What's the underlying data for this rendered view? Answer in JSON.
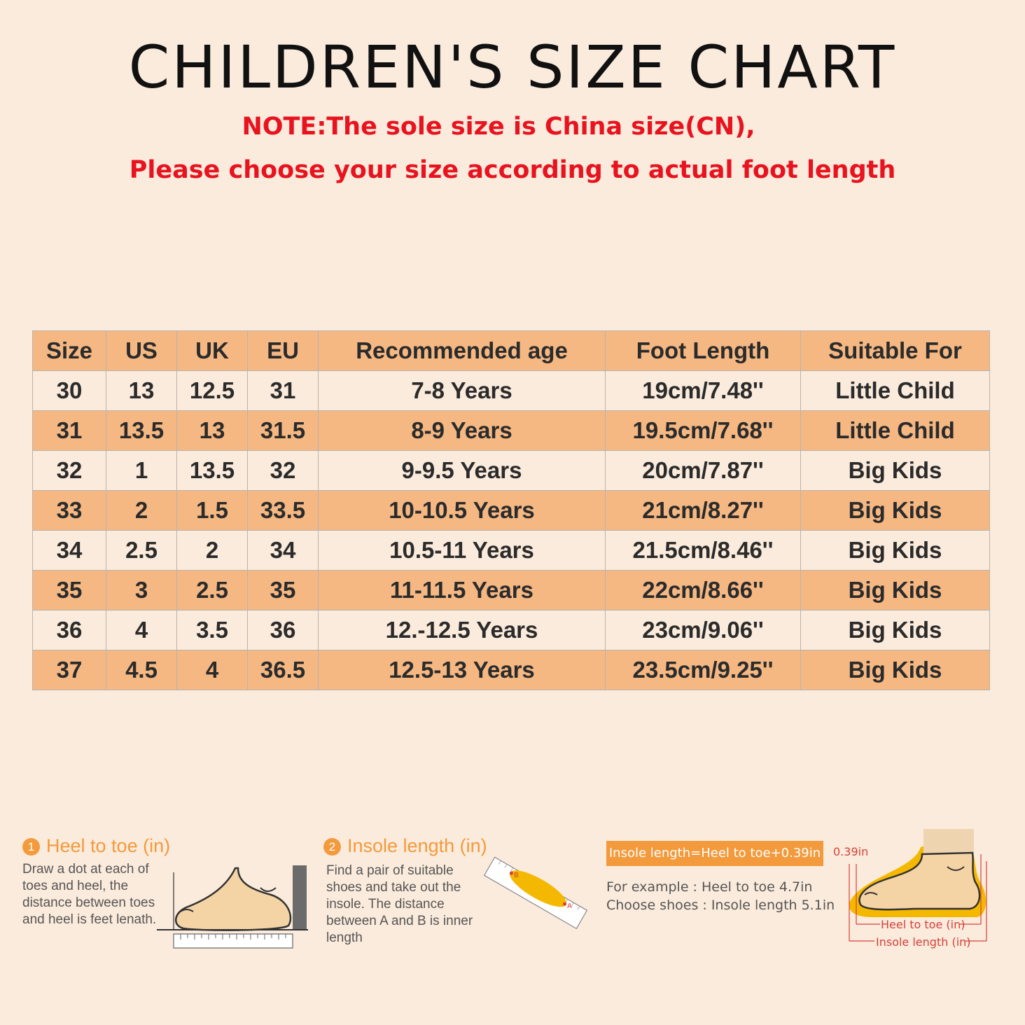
{
  "title": "CHILDREN'S SIZE CHART",
  "note_line1": "NOTE:The sole size is China size(CN),",
  "note_line2": "Please choose your size according to actual foot length",
  "table": {
    "headers": [
      "Size",
      "US",
      "UK",
      "EU",
      "Recommended age",
      "Foot Length",
      "Suitable For"
    ],
    "rows": [
      [
        "30",
        "13",
        "12.5",
        "31",
        "7-8 Years",
        "19cm/7.48''",
        "Little Child"
      ],
      [
        "31",
        "13.5",
        "13",
        "31.5",
        "8-9 Years",
        "19.5cm/7.68''",
        "Little Child"
      ],
      [
        "32",
        "1",
        "13.5",
        "32",
        "9-9.5 Years",
        "20cm/7.87''",
        "Big Kids"
      ],
      [
        "33",
        "2",
        "1.5",
        "33.5",
        "10-10.5 Years",
        "21cm/8.27''",
        "Big Kids"
      ],
      [
        "34",
        "2.5",
        "2",
        "34",
        "10.5-11 Years",
        "21.5cm/8.46''",
        "Big Kids"
      ],
      [
        "35",
        "3",
        "2.5",
        "35",
        "11-11.5 Years",
        "22cm/8.66''",
        "Big Kids"
      ],
      [
        "36",
        "4",
        "3.5",
        "36",
        "12.-12.5 Years",
        "23cm/9.06''",
        "Big Kids"
      ],
      [
        "37",
        "4.5",
        "4",
        "36.5",
        "12.5-13 Years",
        "23.5cm/9.25''",
        "Big Kids"
      ]
    ]
  },
  "steps": [
    {
      "num": "1",
      "title": "Heel to toe (in)",
      "text": "Draw a dot at each of toes and heel, the distance between toes and heel is feet lenath."
    },
    {
      "num": "2",
      "title": "Insole length (in)",
      "text": "Find a pair of suitable shoes and take out the insole. The distance between A and B is inner length"
    }
  ],
  "insole_labels": {
    "b": "B",
    "a": "A"
  },
  "formula": "Insole length=Heel to toe+0.39in",
  "example_line1": "For example : Heel to toe  4.7in",
  "example_line2": "Choose shoes : Insole length 5.1in",
  "diagram": {
    "offset": "0.39in",
    "heel_to_toe": "Heel to toe (in)",
    "insole_length": "Insole length (in)"
  },
  "colors": {
    "background": "#fbebdc",
    "row_orange": "#f5b883",
    "note_red": "#e8131f",
    "accent_orange": "#f39a3c",
    "insole_yellow": "#f5b800"
  }
}
